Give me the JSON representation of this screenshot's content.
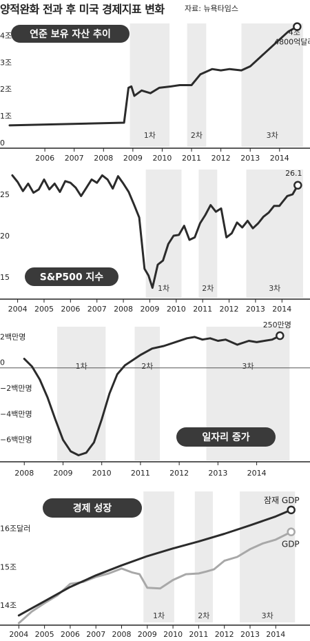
{
  "header": {
    "title": "양적완화 전과 후 미국 경제지표 변화",
    "source": "자료: 뉴욕타임스"
  },
  "colors": {
    "line": "#2b2b2b",
    "gdp": "#a8a8a8",
    "shade": "#ebebeb",
    "pill": "#3a3a3a",
    "axis": "#222222"
  },
  "chart_data": [
    {
      "type": "line",
      "title": "연준 보유 자산 추이",
      "ylim": [
        0,
        4.6
      ],
      "xlim": [
        2004.8,
        2014.85
      ],
      "y_ticks": [
        {
          "value": 0,
          "label": "0"
        },
        {
          "value": 1,
          "label": "1조"
        },
        {
          "value": 2,
          "label": "2조"
        },
        {
          "value": 3,
          "label": "3조"
        },
        {
          "value": 4,
          "label": "4조달러"
        }
      ],
      "x_ticks": [
        {
          "value": 2006,
          "label": "2006"
        },
        {
          "value": 2007,
          "label": "2007"
        },
        {
          "value": 2008,
          "label": "2008"
        },
        {
          "value": 2009,
          "label": "2009"
        },
        {
          "value": 2010,
          "label": "2010"
        },
        {
          "value": 2011,
          "label": "2011"
        },
        {
          "value": 2012,
          "label": "2012"
        },
        {
          "value": 2013,
          "label": "2013"
        },
        {
          "value": 2014,
          "label": "2014"
        }
      ],
      "shaded_periods": [
        {
          "label": "1차",
          "start": 2008.9,
          "end": 2010.25
        },
        {
          "label": "2차",
          "start": 2010.85,
          "end": 2011.5
        },
        {
          "label": "3차",
          "start": 2012.7,
          "end": 2014.8
        }
      ],
      "series": [
        {
          "values": [
            [
              2004.8,
              0.8
            ],
            [
              2008.7,
              0.9
            ],
            [
              2008.85,
              2.2
            ],
            [
              2008.95,
              2.25
            ],
            [
              2009.05,
              1.9
            ],
            [
              2009.3,
              2.1
            ],
            [
              2009.6,
              2.0
            ],
            [
              2009.9,
              2.2
            ],
            [
              2010.3,
              2.25
            ],
            [
              2010.6,
              2.3
            ],
            [
              2011.0,
              2.3
            ],
            [
              2011.3,
              2.7
            ],
            [
              2011.7,
              2.9
            ],
            [
              2012.0,
              2.85
            ],
            [
              2012.3,
              2.9
            ],
            [
              2012.7,
              2.85
            ],
            [
              2013.0,
              3.0
            ],
            [
              2013.5,
              3.5
            ],
            [
              2014.0,
              4.0
            ],
            [
              2014.3,
              4.3
            ],
            [
              2014.6,
              4.48
            ]
          ]
        }
      ],
      "end_label": [
        "4조",
        "4800억달러"
      ]
    },
    {
      "type": "line",
      "title": "S&P500 지수",
      "ylim": [
        12.5,
        28
      ],
      "xlim": [
        2003.75,
        2014.8
      ],
      "y_ticks": [
        {
          "value": 15,
          "label": "15"
        },
        {
          "value": 20,
          "label": "20"
        },
        {
          "value": 25,
          "label": "25"
        }
      ],
      "x_ticks": [
        {
          "value": 2004,
          "label": "2004"
        },
        {
          "value": 2005,
          "label": "2005"
        },
        {
          "value": 2006,
          "label": "2006"
        },
        {
          "value": 2007,
          "label": "2007"
        },
        {
          "value": 2008,
          "label": "2008"
        },
        {
          "value": 2009,
          "label": "2009"
        },
        {
          "value": 2010,
          "label": "2010"
        },
        {
          "value": 2011,
          "label": "2011"
        },
        {
          "value": 2012,
          "label": "2012"
        },
        {
          "value": 2013,
          "label": "2013"
        },
        {
          "value": 2014,
          "label": "2014"
        }
      ],
      "shaded_periods": [
        {
          "label": "1차",
          "start": 2008.85,
          "end": 2010.2
        },
        {
          "label": "2차",
          "start": 2010.85,
          "end": 2011.55
        },
        {
          "label": "3차",
          "start": 2012.65,
          "end": 2014.8
        }
      ],
      "series": [
        {
          "values": [
            [
              2003.8,
              27.3
            ],
            [
              2004.0,
              26.5
            ],
            [
              2004.2,
              25.4
            ],
            [
              2004.4,
              26.3
            ],
            [
              2004.6,
              25.2
            ],
            [
              2004.8,
              25.6
            ],
            [
              2005.0,
              26.8
            ],
            [
              2005.2,
              25.6
            ],
            [
              2005.4,
              26.3
            ],
            [
              2005.6,
              25.3
            ],
            [
              2005.8,
              26.6
            ],
            [
              2006.0,
              26.4
            ],
            [
              2006.2,
              25.8
            ],
            [
              2006.4,
              24.8
            ],
            [
              2006.6,
              25.8
            ],
            [
              2006.8,
              26.8
            ],
            [
              2007.0,
              26.4
            ],
            [
              2007.2,
              27.3
            ],
            [
              2007.4,
              26.8
            ],
            [
              2007.6,
              25.7
            ],
            [
              2007.8,
              27.2
            ],
            [
              2008.0,
              26.3
            ],
            [
              2008.2,
              25.3
            ],
            [
              2008.4,
              23.8
            ],
            [
              2008.6,
              22.2
            ],
            [
              2008.8,
              16.0
            ],
            [
              2008.95,
              15.2
            ],
            [
              2009.1,
              13.7
            ],
            [
              2009.3,
              16.5
            ],
            [
              2009.5,
              17.0
            ],
            [
              2009.7,
              19.0
            ],
            [
              2009.9,
              20.0
            ],
            [
              2010.1,
              20.1
            ],
            [
              2010.3,
              21.2
            ],
            [
              2010.5,
              19.5
            ],
            [
              2010.7,
              19.8
            ],
            [
              2010.9,
              21.5
            ],
            [
              2011.1,
              22.5
            ],
            [
              2011.3,
              23.7
            ],
            [
              2011.5,
              22.9
            ],
            [
              2011.7,
              23.3
            ],
            [
              2011.9,
              19.8
            ],
            [
              2012.1,
              20.3
            ],
            [
              2012.3,
              21.6
            ],
            [
              2012.5,
              21.0
            ],
            [
              2012.7,
              21.8
            ],
            [
              2012.9,
              20.9
            ],
            [
              2013.1,
              21.5
            ],
            [
              2013.3,
              22.3
            ],
            [
              2013.5,
              22.8
            ],
            [
              2013.7,
              23.6
            ],
            [
              2013.9,
              23.6
            ],
            [
              2014.0,
              24.0
            ],
            [
              2014.2,
              24.8
            ],
            [
              2014.4,
              25.0
            ],
            [
              2014.6,
              26.1
            ]
          ]
        }
      ],
      "end_label": [
        "26.1"
      ]
    },
    {
      "type": "line",
      "title": "일자리 증가",
      "ylim": [
        -7.2,
        3.2
      ],
      "xlim": [
        2007.8,
        2014.95
      ],
      "y_ticks": [
        {
          "value": 2,
          "label": "2백만명"
        },
        {
          "value": 0,
          "label": "0"
        },
        {
          "value": -2,
          "label": "−2백만명"
        },
        {
          "value": -4,
          "label": "−4백만명"
        },
        {
          "value": -6,
          "label": "−6백만명"
        }
      ],
      "x_ticks": [
        {
          "value": 2008,
          "label": "2008"
        },
        {
          "value": 2009,
          "label": "2009"
        },
        {
          "value": 2010,
          "label": "2010"
        },
        {
          "value": 2011,
          "label": "2011"
        },
        {
          "value": 2012,
          "label": "2012"
        },
        {
          "value": 2013,
          "label": "2013"
        },
        {
          "value": 2014,
          "label": "2014"
        }
      ],
      "shaded_periods": [
        {
          "label": "1차",
          "start": 2008.85,
          "end": 2010.1
        },
        {
          "label": "2차",
          "start": 2010.85,
          "end": 2011.5
        },
        {
          "label": "3차",
          "start": 2012.7,
          "end": 2014.85
        }
      ],
      "series": [
        {
          "values": [
            [
              2008.0,
              0.7
            ],
            [
              2008.2,
              0.1
            ],
            [
              2008.4,
              -0.9
            ],
            [
              2008.6,
              -2.3
            ],
            [
              2008.8,
              -4.0
            ],
            [
              2009.0,
              -5.6
            ],
            [
              2009.2,
              -6.5
            ],
            [
              2009.4,
              -6.8
            ],
            [
              2009.6,
              -6.6
            ],
            [
              2009.8,
              -5.8
            ],
            [
              2010.0,
              -4.0
            ],
            [
              2010.2,
              -2.0
            ],
            [
              2010.4,
              -0.5
            ],
            [
              2010.6,
              0.2
            ],
            [
              2010.8,
              0.6
            ],
            [
              2011.0,
              1.0
            ],
            [
              2011.3,
              1.5
            ],
            [
              2011.6,
              1.7
            ],
            [
              2011.9,
              2.0
            ],
            [
              2012.2,
              2.3
            ],
            [
              2012.4,
              2.4
            ],
            [
              2012.6,
              2.2
            ],
            [
              2012.8,
              2.3
            ],
            [
              2013.0,
              2.1
            ],
            [
              2013.2,
              2.2
            ],
            [
              2013.5,
              1.8
            ],
            [
              2013.8,
              2.1
            ],
            [
              2014.0,
              2.0
            ],
            [
              2014.2,
              2.1
            ],
            [
              2014.4,
              2.2
            ],
            [
              2014.6,
              2.5
            ]
          ]
        }
      ],
      "end_label": [
        "250만명"
      ]
    },
    {
      "type": "line",
      "title": "경제 성장",
      "ylim": [
        13.7,
        17.1
      ],
      "xlim": [
        2003.75,
        2014.85
      ],
      "y_ticks": [
        {
          "value": 14,
          "label": "14조"
        },
        {
          "value": 15,
          "label": "15조"
        },
        {
          "value": 16,
          "label": "16조달러"
        }
      ],
      "x_ticks": [
        {
          "value": 2004,
          "label": "2004"
        },
        {
          "value": 2005,
          "label": "2005"
        },
        {
          "value": 2006,
          "label": "2006"
        },
        {
          "value": 2007,
          "label": "2007"
        },
        {
          "value": 2008,
          "label": "2008"
        },
        {
          "value": 2009,
          "label": "2009"
        },
        {
          "value": 2010,
          "label": "2010"
        },
        {
          "value": 2011,
          "label": "2011"
        },
        {
          "value": 2012,
          "label": "2012"
        },
        {
          "value": 2013,
          "label": "2013"
        },
        {
          "value": 2014,
          "label": "2014"
        }
      ],
      "shaded_periods": [
        {
          "label": "1차",
          "start": 2008.85,
          "end": 2010.05
        },
        {
          "label": "2차",
          "start": 2010.85,
          "end": 2011.55
        },
        {
          "label": "3차",
          "start": 2012.6,
          "end": 2014.75
        }
      ],
      "series": [
        {
          "name": "잠재 GDP",
          "values": [
            [
              2004.0,
              13.88
            ],
            [
              2005.0,
              14.25
            ],
            [
              2006.0,
              14.62
            ],
            [
              2007.0,
              14.92
            ],
            [
              2008.0,
              15.18
            ],
            [
              2009.0,
              15.42
            ],
            [
              2010.0,
              15.62
            ],
            [
              2011.0,
              15.8
            ],
            [
              2012.0,
              16.0
            ],
            [
              2013.0,
              16.22
            ],
            [
              2014.0,
              16.45
            ],
            [
              2014.6,
              16.62
            ]
          ]
        },
        {
          "name": "GDP",
          "values": [
            [
              2004.0,
              13.68
            ],
            [
              2004.5,
              13.98
            ],
            [
              2005.0,
              14.2
            ],
            [
              2005.5,
              14.4
            ],
            [
              2006.0,
              14.7
            ],
            [
              2006.5,
              14.75
            ],
            [
              2007.0,
              14.88
            ],
            [
              2007.5,
              14.97
            ],
            [
              2008.0,
              15.1
            ],
            [
              2008.4,
              15.0
            ],
            [
              2008.7,
              14.95
            ],
            [
              2009.0,
              14.6
            ],
            [
              2009.5,
              14.58
            ],
            [
              2010.0,
              14.8
            ],
            [
              2010.5,
              14.95
            ],
            [
              2011.0,
              14.97
            ],
            [
              2011.3,
              15.02
            ],
            [
              2011.6,
              15.08
            ],
            [
              2012.0,
              15.3
            ],
            [
              2012.5,
              15.4
            ],
            [
              2013.0,
              15.6
            ],
            [
              2013.5,
              15.75
            ],
            [
              2014.0,
              15.85
            ],
            [
              2014.3,
              15.95
            ],
            [
              2014.6,
              16.05
            ]
          ]
        }
      ],
      "end_label": []
    }
  ]
}
